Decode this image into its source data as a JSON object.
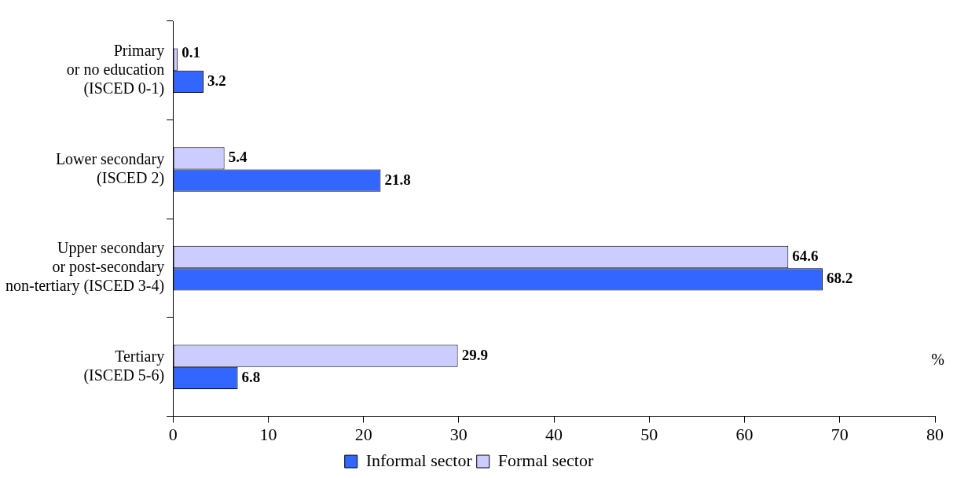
{
  "chart_data": {
    "type": "bar",
    "orientation": "horizontal",
    "categories": [
      "Primary\nor no education\n(ISCED 0-1)",
      "Lower secondary\n(ISCED 2)",
      "Upper secondary\nor post-secondary\nnon-tertiary (ISCED 3-4)",
      "Tertiary\n(ISCED 5-6)"
    ],
    "series": [
      {
        "name": "Informal sector",
        "color": "#3366ff",
        "values": [
          3.2,
          21.8,
          68.2,
          6.8
        ]
      },
      {
        "name": "Formal sector",
        "color": "#ccccff",
        "values": [
          0.1,
          5.4,
          64.6,
          29.9
        ]
      }
    ],
    "xlim": [
      0,
      80
    ],
    "xticks": [
      0,
      10,
      20,
      30,
      40,
      50,
      60,
      70,
      80
    ],
    "data_labels": true,
    "legend": "bottom",
    "grid": false,
    "annotations": [
      "%"
    ]
  }
}
